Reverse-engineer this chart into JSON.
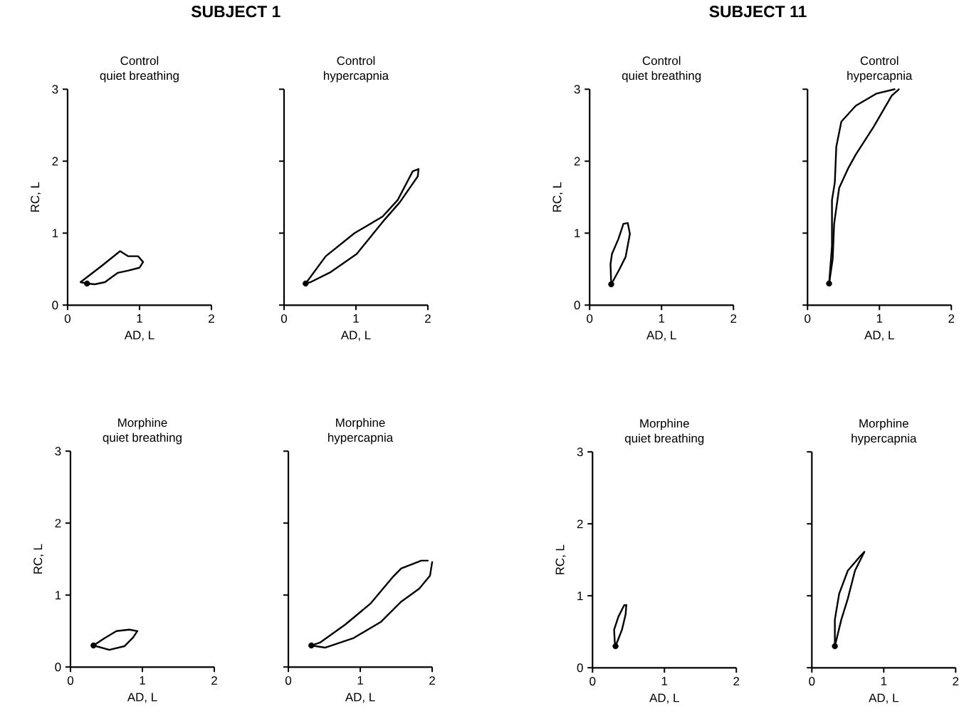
{
  "chart_data": [
    {
      "type": "line",
      "title": "Control",
      "subtitle": "quiet breathing",
      "xlabel": "AD, L",
      "ylabel": "RC, L",
      "xlim": [
        0,
        2
      ],
      "ylim": [
        0,
        3
      ],
      "xticks": [
        0,
        1,
        2
      ],
      "yticks": [
        0,
        1,
        2,
        3
      ],
      "annotations": [
        "SUBJECT 1"
      ],
      "series": [
        {
          "color": "#000000",
          "line_style": "solid",
          "marker": "none",
          "x": [
            0.27,
            0.38,
            0.52,
            0.7,
            0.84,
            1.0,
            1.05
          ],
          "values": [
            0.3,
            0.29,
            0.32,
            0.45,
            0.48,
            0.52,
            0.6
          ]
        },
        {
          "color": "#000000",
          "line_style": "solid",
          "marker": "none",
          "x": [
            1.05,
            0.98,
            0.84,
            0.73,
            0.48,
            0.18,
            0.27
          ],
          "values": [
            0.6,
            0.68,
            0.68,
            0.75,
            0.55,
            0.32,
            0.3
          ]
        },
        {
          "type": "scatter",
          "color": "#000000",
          "marker": "circle",
          "x": [
            0.27
          ],
          "values": [
            0.3
          ]
        }
      ]
    },
    {
      "type": "line",
      "title": "Control",
      "subtitle": "hypercapnia",
      "xlabel": "AD, L",
      "xlim": [
        0,
        2
      ],
      "ylim": [
        0,
        3
      ],
      "xticks": [
        0,
        1,
        2
      ],
      "yticks": [
        0,
        1,
        2,
        3
      ],
      "tick_labels": "x",
      "series": [
        {
          "color": "#000000",
          "line_style": "solid",
          "marker": "none",
          "x": [
            0.3,
            0.37,
            0.65,
            1.01,
            1.4,
            1.61,
            1.86,
            1.87
          ],
          "values": [
            0.3,
            0.32,
            0.46,
            0.71,
            1.19,
            1.43,
            1.79,
            1.89
          ]
        },
        {
          "color": "#000000",
          "line_style": "solid",
          "marker": "none",
          "x": [
            1.87,
            1.79,
            1.58,
            1.37,
            0.98,
            0.58,
            0.3
          ],
          "values": [
            1.89,
            1.86,
            1.46,
            1.23,
            1.0,
            0.68,
            0.3
          ]
        },
        {
          "type": "scatter",
          "color": "#000000",
          "marker": "circle",
          "x": [
            0.3
          ],
          "values": [
            0.3
          ]
        }
      ]
    },
    {
      "type": "line",
      "title": "Control",
      "subtitle": "quiet breathing",
      "xlabel": "AD, L",
      "ylabel": "RC, L",
      "xlim": [
        0,
        2
      ],
      "ylim": [
        0,
        3
      ],
      "xticks": [
        0,
        1,
        2
      ],
      "yticks": [
        0,
        1,
        2,
        3
      ],
      "annotations": [
        "SUBJECT 11"
      ],
      "series": [
        {
          "color": "#000000",
          "line_style": "solid",
          "marker": "none",
          "x": [
            0.3,
            0.41,
            0.5,
            0.56,
            0.53
          ],
          "values": [
            0.29,
            0.49,
            0.67,
            0.99,
            1.14
          ]
        },
        {
          "color": "#000000",
          "line_style": "solid",
          "marker": "none",
          "x": [
            0.53,
            0.47,
            0.4,
            0.31,
            0.29,
            0.3
          ],
          "values": [
            1.14,
            1.13,
            0.92,
            0.71,
            0.57,
            0.29
          ]
        },
        {
          "type": "scatter",
          "color": "#000000",
          "marker": "circle",
          "x": [
            0.3
          ],
          "values": [
            0.29
          ]
        }
      ]
    },
    {
      "type": "line",
      "title": "Control",
      "subtitle": "hypercapnia",
      "xlabel": "AD, L",
      "xlim": [
        0,
        2
      ],
      "ylim": [
        0,
        3
      ],
      "xticks": [
        0,
        1,
        2
      ],
      "yticks": [
        0,
        1,
        2,
        3
      ],
      "tick_labels": "x",
      "series": [
        {
          "color": "#000000",
          "line_style": "solid",
          "marker": "none",
          "x": [
            0.3,
            0.35,
            0.37,
            0.44,
            0.57,
            0.67,
            0.92,
            1.17,
            1.27
          ],
          "values": [
            0.3,
            0.64,
            1.13,
            1.63,
            1.91,
            2.09,
            2.48,
            2.91,
            3.0
          ]
        },
        {
          "color": "#000000",
          "line_style": "solid",
          "marker": "none",
          "x": [
            1.21,
            0.96,
            0.67,
            0.47,
            0.4,
            0.38,
            0.34,
            0.34,
            0.3
          ],
          "values": [
            3.0,
            2.94,
            2.77,
            2.55,
            2.2,
            1.71,
            1.46,
            0.82,
            0.3
          ]
        },
        {
          "type": "scatter",
          "color": "#000000",
          "marker": "circle",
          "x": [
            0.3
          ],
          "values": [
            0.3
          ]
        }
      ]
    },
    {
      "type": "line",
      "title": "Morphine",
      "subtitle": "quiet breathing",
      "xlabel": "AD, L",
      "ylabel": "RC, L",
      "xlim": [
        0,
        2
      ],
      "ylim": [
        0,
        3
      ],
      "xticks": [
        0,
        1,
        2
      ],
      "yticks": [
        0,
        1,
        2,
        3
      ],
      "series": [
        {
          "color": "#000000",
          "line_style": "solid",
          "marker": "none",
          "x": [
            0.32,
            0.54,
            0.75,
            0.87,
            0.93
          ],
          "values": [
            0.3,
            0.24,
            0.29,
            0.41,
            0.5
          ]
        },
        {
          "color": "#000000",
          "line_style": "solid",
          "marker": "none",
          "x": [
            0.93,
            0.82,
            0.64,
            0.47,
            0.32
          ],
          "values": [
            0.5,
            0.52,
            0.5,
            0.4,
            0.3
          ]
        },
        {
          "type": "scatter",
          "color": "#000000",
          "marker": "circle",
          "x": [
            0.32
          ],
          "values": [
            0.3
          ]
        }
      ]
    },
    {
      "type": "line",
      "title": "Morphine",
      "subtitle": "hypercapnia",
      "xlabel": "AD, L",
      "xlim": [
        0,
        2
      ],
      "ylim": [
        0,
        3
      ],
      "xticks": [
        0,
        1,
        2
      ],
      "yticks": [
        0,
        1,
        2,
        3
      ],
      "tick_labels": "x",
      "series": [
        {
          "color": "#000000",
          "line_style": "solid",
          "marker": "none",
          "x": [
            0.32,
            0.51,
            0.9,
            1.29,
            1.57,
            1.82,
            1.97,
            2.0
          ],
          "values": [
            0.3,
            0.27,
            0.4,
            0.63,
            0.91,
            1.09,
            1.27,
            1.46
          ]
        },
        {
          "color": "#000000",
          "line_style": "solid",
          "marker": "none",
          "x": [
            1.94,
            1.85,
            1.57,
            1.46,
            1.14,
            0.79,
            0.44,
            0.32
          ],
          "values": [
            1.48,
            1.48,
            1.37,
            1.26,
            0.88,
            0.59,
            0.34,
            0.3
          ]
        },
        {
          "type": "scatter",
          "color": "#000000",
          "marker": "circle",
          "x": [
            0.32
          ],
          "values": [
            0.3
          ]
        }
      ]
    },
    {
      "type": "line",
      "title": "Morphine",
      "subtitle": "quiet breathing",
      "xlabel": "AD, L",
      "ylabel": "RC, L",
      "xlim": [
        0,
        2
      ],
      "ylim": [
        0,
        3
      ],
      "xticks": [
        0,
        1,
        2
      ],
      "yticks": [
        0,
        1,
        2,
        3
      ],
      "series": [
        {
          "color": "#000000",
          "line_style": "solid",
          "marker": "none",
          "x": [
            0.32,
            0.41,
            0.46,
            0.47
          ],
          "values": [
            0.3,
            0.53,
            0.74,
            0.87
          ]
        },
        {
          "color": "#000000",
          "line_style": "solid",
          "marker": "none",
          "x": [
            0.47,
            0.44,
            0.36,
            0.3,
            0.31,
            0.32
          ],
          "values": [
            0.87,
            0.87,
            0.71,
            0.53,
            0.35,
            0.3
          ]
        },
        {
          "type": "scatter",
          "color": "#000000",
          "marker": "circle",
          "x": [
            0.32
          ],
          "values": [
            0.3
          ]
        }
      ]
    },
    {
      "type": "line",
      "title": "Morphine",
      "subtitle": "hypercapnia",
      "xlabel": "AD, L",
      "xlim": [
        0,
        2
      ],
      "ylim": [
        0,
        3
      ],
      "xticks": [
        0,
        1,
        2
      ],
      "yticks": [
        0,
        1,
        2,
        3
      ],
      "tick_labels": "x",
      "series": [
        {
          "color": "#000000",
          "line_style": "solid",
          "marker": "none",
          "x": [
            0.32,
            0.41,
            0.5,
            0.6,
            0.73
          ],
          "values": [
            0.3,
            0.67,
            0.96,
            1.35,
            1.61
          ]
        },
        {
          "color": "#000000",
          "line_style": "solid",
          "marker": "none",
          "x": [
            0.73,
            0.68,
            0.5,
            0.38,
            0.32,
            0.32
          ],
          "values": [
            1.61,
            1.56,
            1.35,
            1.03,
            0.67,
            0.3
          ]
        },
        {
          "type": "scatter",
          "color": "#000000",
          "marker": "circle",
          "x": [
            0.32
          ],
          "values": [
            0.3
          ]
        }
      ]
    }
  ]
}
